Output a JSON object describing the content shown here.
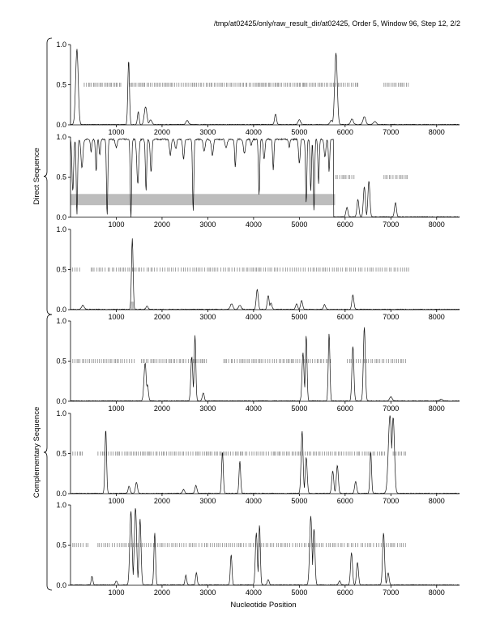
{
  "header": {
    "title": "/tmp/at02425/only/raw_result_dir/at02425, Order 5, Window 96, Step 12, 2/2"
  },
  "axes": {
    "xlabel": "Nucleotide Position"
  },
  "groups": [
    {
      "label": "Direct Sequence",
      "panels": [
        0,
        1,
        2
      ]
    },
    {
      "label": "Complementary Sequence",
      "panels": [
        3,
        4,
        5
      ]
    }
  ],
  "colors": {
    "line": "#111111",
    "shade": "#bdbdbd",
    "ticks": "#888888",
    "axis": "#000000"
  },
  "chart_data": {
    "type": "line",
    "xlim": [
      0,
      8500
    ],
    "ylim": [
      0,
      1
    ],
    "xticks": [
      1000,
      2000,
      3000,
      4000,
      5000,
      6000,
      7000,
      8000
    ],
    "yticks": [
      0.0,
      0.5,
      1.0
    ],
    "ytick_labels": [
      "0.0",
      "0.5",
      "1.0"
    ],
    "xlabel": "Nucleotide Position",
    "panels": [
      {
        "id": "direct-frame-1",
        "peaks": [
          [
            140,
            0.94,
            40
          ],
          [
            1270,
            0.8,
            25
          ],
          [
            1480,
            0.16,
            25
          ],
          [
            1640,
            0.22,
            40
          ],
          [
            1750,
            0.06,
            40
          ],
          [
            2550,
            0.05,
            40
          ],
          [
            4480,
            0.13,
            30
          ],
          [
            5000,
            0.06,
            40
          ],
          [
            5700,
            0.05,
            40
          ],
          [
            5800,
            0.89,
            40
          ],
          [
            6150,
            0.07,
            40
          ],
          [
            6420,
            0.1,
            40
          ],
          [
            6650,
            0.04,
            40
          ]
        ],
        "marks": {
          "ranges": [
            [
              300,
              1100
            ],
            [
              1300,
              5800
            ],
            [
              5850,
              6300
            ],
            [
              6850,
              7400
            ]
          ],
          "spacing": 35,
          "y": 0.5
        },
        "shade": null,
        "mode": "peaks"
      },
      {
        "id": "direct-frame-2",
        "mode": "high",
        "high_range": [
          0,
          5750
        ],
        "dips": [
          [
            50,
            0.35,
            25
          ],
          [
            140,
            0.05,
            20
          ],
          [
            250,
            0.65,
            30
          ],
          [
            450,
            0.85,
            20
          ],
          [
            560,
            0.6,
            20
          ],
          [
            640,
            0.8,
            20
          ],
          [
            800,
            0.05,
            20
          ],
          [
            1000,
            0.9,
            30
          ],
          [
            1320,
            0.0,
            20
          ],
          [
            1470,
            0.45,
            30
          ],
          [
            1650,
            0.35,
            20
          ],
          [
            1760,
            0.6,
            25
          ],
          [
            2180,
            0.8,
            25
          ],
          [
            2300,
            0.88,
            25
          ],
          [
            2470,
            0.75,
            25
          ],
          [
            2680,
            0.1,
            20
          ],
          [
            2920,
            0.85,
            30
          ],
          [
            3100,
            0.8,
            30
          ],
          [
            3400,
            0.9,
            30
          ],
          [
            3600,
            0.65,
            20
          ],
          [
            3800,
            0.82,
            30
          ],
          [
            3950,
            0.92,
            20
          ],
          [
            4120,
            0.3,
            20
          ],
          [
            4230,
            0.75,
            25
          ],
          [
            4430,
            0.62,
            20
          ],
          [
            4780,
            0.9,
            20
          ],
          [
            5000,
            0.7,
            25
          ],
          [
            5150,
            0.2,
            20
          ],
          [
            5250,
            0.35,
            20
          ],
          [
            5320,
            0.1,
            20
          ],
          [
            5420,
            0.45,
            20
          ],
          [
            5560,
            0.78,
            25
          ],
          [
            5650,
            0.6,
            20
          ]
        ],
        "peaks": [
          [
            6040,
            0.12,
            30
          ],
          [
            6280,
            0.22,
            30
          ],
          [
            6420,
            0.38,
            30
          ],
          [
            6520,
            0.45,
            30
          ],
          [
            7100,
            0.18,
            30
          ]
        ],
        "marks": {
          "ranges": [
            [
              5800,
              6200
            ],
            [
              6850,
              7400
            ]
          ],
          "spacing": 40,
          "y": 0.5
        },
        "shade": {
          "x0": 0,
          "x1": 5780,
          "y0": 0.15,
          "y1": 0.29
        }
      },
      {
        "id": "direct-frame-3",
        "peaks": [
          [
            270,
            0.05,
            40
          ],
          [
            1350,
            0.88,
            25
          ],
          [
            1670,
            0.04,
            30
          ],
          [
            3520,
            0.07,
            40
          ],
          [
            3700,
            0.05,
            40
          ],
          [
            4080,
            0.25,
            30
          ],
          [
            4320,
            0.17,
            30
          ],
          [
            4380,
            0.08,
            30
          ],
          [
            4940,
            0.07,
            30
          ],
          [
            5050,
            0.11,
            30
          ],
          [
            5550,
            0.06,
            30
          ],
          [
            6170,
            0.18,
            30
          ]
        ],
        "marks": {
          "ranges": [
            [
              0,
              200
            ],
            [
              450,
              7400
            ]
          ],
          "spacing": 45,
          "y": 0.5
        },
        "shade": {
          "x0": 1320,
          "x1": 1380,
          "y0": 0,
          "y1": 0.1
        },
        "mode": "peaks"
      },
      {
        "id": "complementary-frame-1",
        "peaks": [
          [
            1630,
            0.47,
            35
          ],
          [
            1680,
            0.2,
            30
          ],
          [
            2650,
            0.55,
            30
          ],
          [
            2720,
            0.82,
            25
          ],
          [
            2900,
            0.1,
            30
          ],
          [
            5080,
            0.6,
            30
          ],
          [
            5150,
            0.82,
            25
          ],
          [
            5650,
            0.84,
            25
          ],
          [
            6170,
            0.68,
            30
          ],
          [
            6420,
            0.92,
            30
          ],
          [
            7000,
            0.05,
            40
          ],
          [
            8100,
            0.02,
            40
          ]
        ],
        "marks": {
          "ranges": [
            [
              50,
              1400
            ],
            [
              1550,
              3000
            ],
            [
              3350,
              5700
            ],
            [
              6050,
              7350
            ]
          ],
          "spacing": 40,
          "y": 0.5
        },
        "shade": null,
        "mode": "peaks"
      },
      {
        "id": "complementary-frame-2",
        "peaks": [
          [
            770,
            0.8,
            25
          ],
          [
            1280,
            0.09,
            30
          ],
          [
            1440,
            0.14,
            30
          ],
          [
            2470,
            0.05,
            30
          ],
          [
            2740,
            0.1,
            30
          ],
          [
            3320,
            0.52,
            25
          ],
          [
            3700,
            0.4,
            25
          ],
          [
            5060,
            0.78,
            30
          ],
          [
            5150,
            0.45,
            30
          ],
          [
            5730,
            0.28,
            30
          ],
          [
            5830,
            0.35,
            30
          ],
          [
            6230,
            0.15,
            30
          ],
          [
            6560,
            0.52,
            25
          ],
          [
            6980,
            0.97,
            50
          ],
          [
            7050,
            0.95,
            40
          ]
        ],
        "marks": {
          "ranges": [
            [
              50,
              300
            ],
            [
              600,
              6900
            ],
            [
              7050,
              7350
            ]
          ],
          "spacing": 40,
          "y": 0.5
        },
        "shade": null,
        "mode": "peaks"
      },
      {
        "id": "complementary-frame-3",
        "peaks": [
          [
            470,
            0.11,
            25
          ],
          [
            1000,
            0.05,
            30
          ],
          [
            1320,
            0.92,
            35
          ],
          [
            1420,
            0.96,
            35
          ],
          [
            1520,
            0.82,
            30
          ],
          [
            1840,
            0.65,
            25
          ],
          [
            2520,
            0.12,
            25
          ],
          [
            2750,
            0.15,
            25
          ],
          [
            3510,
            0.38,
            25
          ],
          [
            4060,
            0.65,
            30
          ],
          [
            4130,
            0.75,
            25
          ],
          [
            4320,
            0.07,
            30
          ],
          [
            5250,
            0.86,
            35
          ],
          [
            5320,
            0.7,
            30
          ],
          [
            5880,
            0.05,
            30
          ],
          [
            6140,
            0.4,
            30
          ],
          [
            6270,
            0.28,
            30
          ],
          [
            6840,
            0.65,
            30
          ],
          [
            6940,
            0.15,
            30
          ]
        ],
        "marks": {
          "ranges": [
            [
              50,
              400
            ],
            [
              600,
              7350
            ]
          ],
          "spacing": 45,
          "y": 0.5
        },
        "shade": null,
        "mode": "peaks"
      }
    ]
  }
}
